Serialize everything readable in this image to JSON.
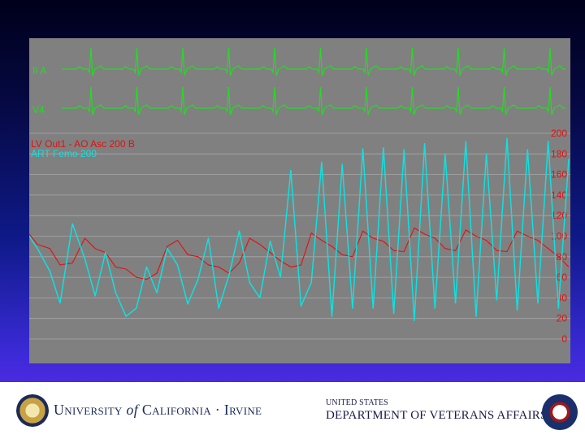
{
  "chart_data": {
    "type": "line",
    "background_color": "#808080",
    "ecg_leads": [
      {
        "label": "II  A",
        "color": "#22dd22"
      },
      {
        "label": "V4",
        "color": "#22dd22"
      }
    ],
    "pressure_labels": [
      {
        "text": "LV Out1 - AO Asc  200  B",
        "color": "#e01010"
      },
      {
        "text": "ART Femo  200",
        "color": "#10e0e0"
      }
    ],
    "y_axis": {
      "ticks": [
        "200",
        "180",
        "160",
        "140",
        "120",
        "100",
        "80",
        "60",
        "40",
        "20",
        "0"
      ],
      "ylim": [
        0,
        200
      ],
      "grid": true,
      "tick_color": "#e01010"
    },
    "x": [
      0,
      0.4,
      1.0,
      1.5,
      2.1,
      2.7,
      3.2,
      3.7,
      4.2,
      4.7,
      5.2,
      5.7,
      6.2,
      6.7,
      7.2,
      7.7,
      8.2,
      8.7,
      9.2,
      9.7,
      10.2,
      10.7,
      11.2,
      11.7,
      12.2,
      12.7,
      13.2,
      13.7,
      14.2,
      14.7,
      15.2,
      15.7,
      16.2,
      16.7,
      17.2,
      17.7,
      18.2,
      18.7,
      19.2,
      19.7,
      20.2,
      20.7,
      21.2,
      21.7,
      22.2,
      22.7,
      23.2,
      23.7,
      24.2,
      24.7,
      25.2,
      25.7,
      26.2
    ],
    "series": [
      {
        "name": "LV Out1 - AO Asc",
        "color": "#e01010",
        "values": [
          102,
          92,
          88,
          72,
          74,
          98,
          88,
          84,
          70,
          68,
          60,
          58,
          64,
          90,
          96,
          82,
          80,
          72,
          70,
          64,
          74,
          98,
          92,
          84,
          76,
          70,
          72,
          103,
          96,
          90,
          82,
          80,
          105,
          98,
          95,
          86,
          85,
          108,
          102,
          98,
          88,
          86,
          106,
          100,
          96,
          86,
          85,
          105,
          100,
          96,
          88,
          80,
          70
        ]
      },
      {
        "name": "ART Femo",
        "color": "#10e0e0",
        "values": [
          100,
          88,
          66,
          35,
          112,
          78,
          42,
          84,
          45,
          22,
          30,
          70,
          45,
          88,
          72,
          34,
          58,
          98,
          30,
          62,
          105,
          55,
          40,
          95,
          60,
          164,
          32,
          55,
          172,
          22,
          170,
          30,
          185,
          30,
          186,
          25,
          184,
          18,
          190,
          30,
          180,
          35,
          192,
          22,
          180,
          38,
          195,
          28,
          184,
          35,
          192,
          30,
          175
        ]
      }
    ]
  },
  "footer": {
    "university": {
      "part1": "University",
      "of": "of",
      "part2": "California · Irvine"
    },
    "va": {
      "line1": "UNITED STATES",
      "line2": "DEPARTMENT OF VETERANS AFFAIRS"
    }
  }
}
